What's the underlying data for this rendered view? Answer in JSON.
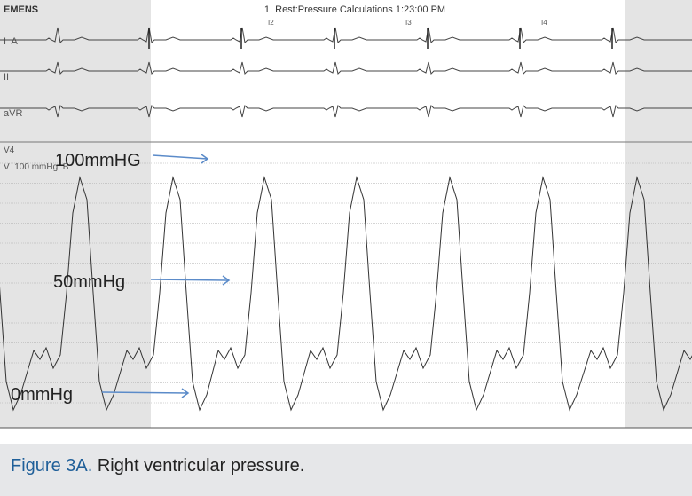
{
  "header": {
    "brand": "EMENS",
    "title": "1. Rest:Pressure Calculations 1:23:00 PM"
  },
  "leads": [
    "I  A",
    "II",
    "aVR",
    "V4",
    "V  100 mmHg  B"
  ],
  "markers": [
    "I2",
    "I3",
    "I4"
  ],
  "annotations": [
    "100mmHG",
    "50mmHg",
    "0mmHg"
  ],
  "caption": {
    "label": "Figure 3A.",
    "text": "Right ventricular pressure."
  }
}
